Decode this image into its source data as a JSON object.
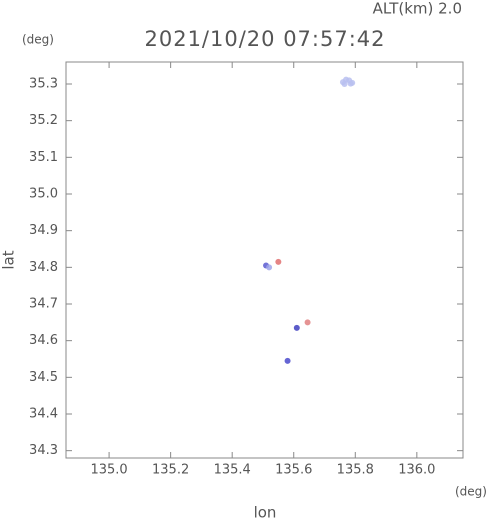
{
  "chart_data": {
    "type": "scatter",
    "title": "2021/10/20 07:57:42",
    "subtitle": "ALT(km) 2.0",
    "x_label": "lon",
    "y_label": "lat",
    "x_unit": "(deg)",
    "y_unit": "(deg)",
    "xlim": [
      134.86,
      136.15
    ],
    "ylim": [
      34.28,
      35.36
    ],
    "xticks": [
      {
        "value": 135,
        "label": "135.0"
      },
      135.2,
      135.4,
      135.6,
      135.8,
      {
        "value": 136,
        "label": "136.0"
      }
    ],
    "yticks": [
      34.3,
      34.4,
      34.5,
      34.6,
      34.7,
      34.8,
      34.9,
      {
        "value": 35,
        "label": "35.0"
      },
      35.1,
      35.2,
      35.3
    ],
    "x": [
      135.76,
      135.77,
      135.78,
      135.79,
      135.765,
      135.785,
      135.51,
      135.52,
      135.55,
      135.61,
      135.645,
      135.58
    ],
    "y": [
      35.305,
      35.312,
      35.31,
      35.303,
      35.3,
      35.301,
      34.805,
      34.8,
      34.815,
      34.635,
      34.65,
      34.545
    ],
    "colors": [
      "#b8bff0",
      "#b8bff0",
      "#b8bff0",
      "#b8bff0",
      "#b8bff0",
      "#b8bff0",
      "#5a5ad0",
      "#9fa6ea",
      "#e07070",
      "#4040c0",
      "#e08080",
      "#4a4acc"
    ]
  }
}
